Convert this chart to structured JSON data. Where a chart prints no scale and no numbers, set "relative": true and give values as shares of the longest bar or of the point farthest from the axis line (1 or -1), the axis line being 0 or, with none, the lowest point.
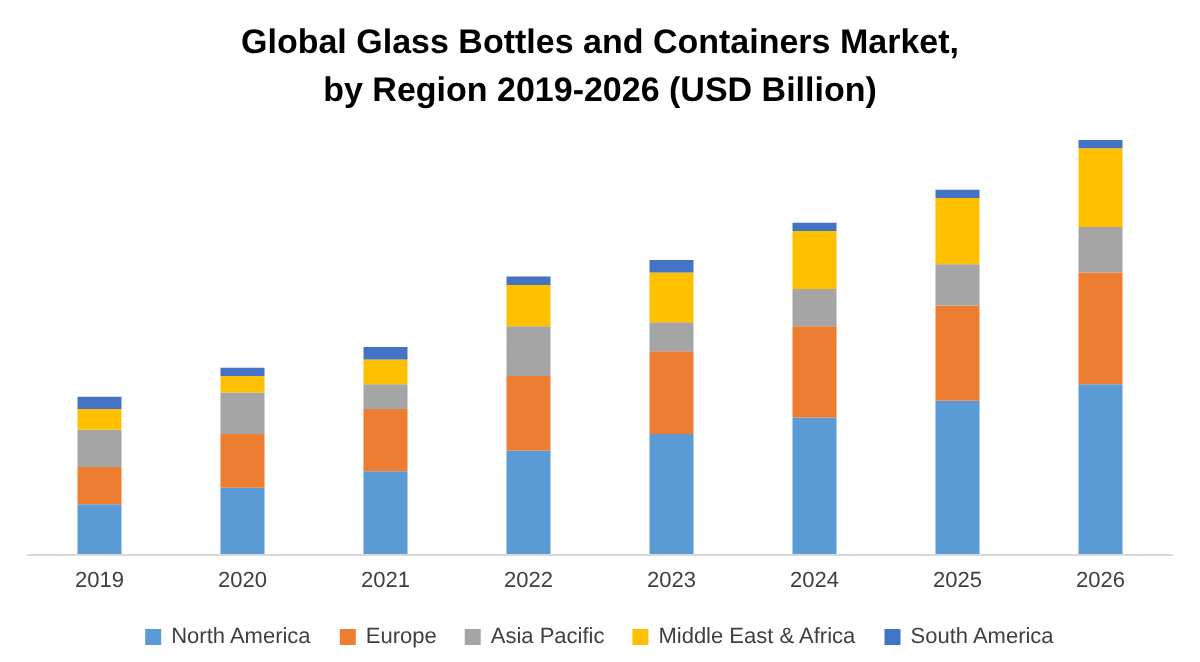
{
  "chart_data": {
    "type": "bar",
    "title": "Global Glass Bottles and Containers Market,\nby Region 2019-2026 (USD Billion)",
    "categories": [
      "2019",
      "2020",
      "2021",
      "2022",
      "2023",
      "2024",
      "2025",
      "2026"
    ],
    "stacked": true,
    "relative": true,
    "legend": "bottom",
    "series": [
      {
        "name": "North America",
        "color": "#5b9bd5",
        "values": [
          0.12,
          0.16,
          0.2,
          0.25,
          0.29,
          0.33,
          0.37,
          0.41
        ]
      },
      {
        "name": "Europe",
        "color": "#ed7d31",
        "values": [
          0.09,
          0.13,
          0.15,
          0.18,
          0.2,
          0.22,
          0.23,
          0.27
        ]
      },
      {
        "name": "Asia Pacific",
        "color": "#a5a5a5",
        "values": [
          0.09,
          0.1,
          0.06,
          0.12,
          0.07,
          0.09,
          0.1,
          0.11
        ]
      },
      {
        "name": "Middle East & Africa",
        "color": "#ffc000",
        "values": [
          0.05,
          0.04,
          0.06,
          0.1,
          0.12,
          0.14,
          0.16,
          0.19
        ]
      },
      {
        "name": "South America",
        "color": "#4472c4",
        "values": [
          0.03,
          0.02,
          0.03,
          0.02,
          0.03,
          0.02,
          0.02,
          0.02
        ]
      }
    ]
  }
}
